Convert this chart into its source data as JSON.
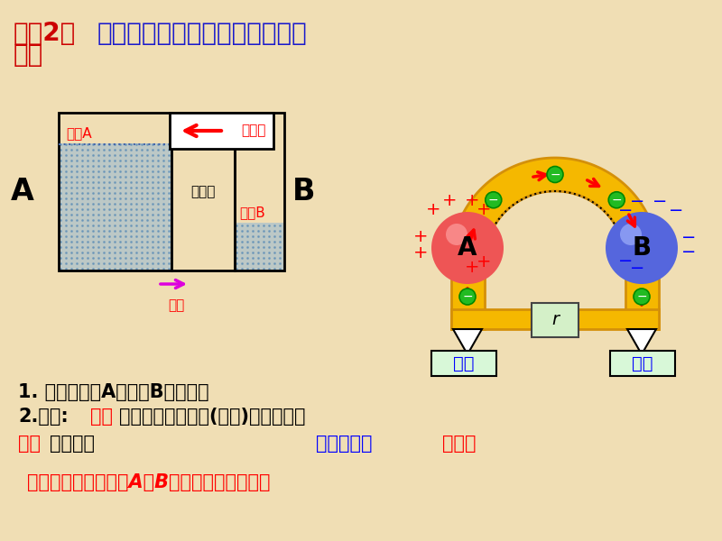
{
  "bg_color": "#f0deb4",
  "title_red": "问题2：",
  "title_blue": "导体中产生持续电流的条件是什",
  "title_line2": "么？",
  "title_color_red": "#cc0000",
  "title_color_blue": "#1a1acc",
  "label_A": "A",
  "label_B": "B",
  "water_level_A": "水势A",
  "water_level_B": "水势B",
  "pump_label": "抽水机",
  "connector_label": "连通器",
  "flow_label": "水流",
  "pos_label": "正极",
  "neg_label": "负极",
  "resistor_label": "r",
  "water_color_hex": "#8ab4d8",
  "water_dot_color": "#6090b8",
  "yellow_tube": "#f5b800",
  "yellow_edge": "#d4900a",
  "circle_A_color": "#ee5555",
  "circle_B_color": "#5566dd",
  "electron_color": "#22bb22",
  "line1": "1. 能把电子从A搬运到B的装置。",
  "line2_prefix": "2.作用:",
  "line2_bold": "保持",
  "line2_suffix": "导体两端的电势差(电压)，使电路有",
  "line3_red": "持续",
  "line3_suffix": "的电流。",
  "line3_note": "电源相当于",
  "line3_note2": "抽水机",
  "line4": "这个装置就是电源。A、B就是电源的两个极。"
}
